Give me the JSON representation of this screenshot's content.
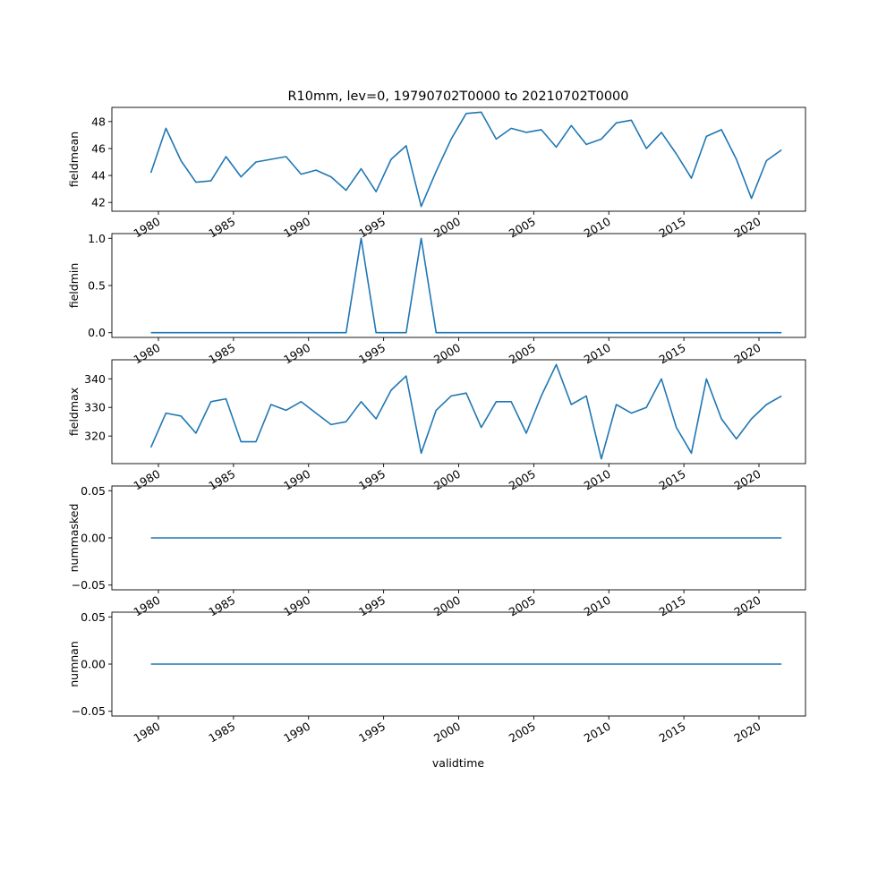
{
  "figure": {
    "title": "R10mm, lev=0, 19790702T0000 to 20210702T0000",
    "xlabel": "validtime",
    "xticks": [
      "1980",
      "1985",
      "1990",
      "1995",
      "2000",
      "2005",
      "2010",
      "2015",
      "2020"
    ],
    "line_color": "#1f77b4"
  },
  "chart_data": [
    {
      "type": "line",
      "ylabel": "fieldmean",
      "x": [
        1979,
        1980,
        1981,
        1982,
        1983,
        1984,
        1985,
        1986,
        1987,
        1988,
        1989,
        1990,
        1991,
        1992,
        1993,
        1994,
        1995,
        1996,
        1997,
        1998,
        1999,
        2000,
        2001,
        2002,
        2003,
        2004,
        2005,
        2006,
        2007,
        2008,
        2009,
        2010,
        2011,
        2012,
        2013,
        2014,
        2015,
        2016,
        2017,
        2018,
        2019,
        2020,
        2021
      ],
      "values": [
        44.2,
        47.5,
        45.1,
        43.5,
        43.6,
        45.4,
        43.9,
        45.0,
        45.2,
        45.4,
        44.1,
        44.4,
        43.9,
        42.9,
        44.5,
        42.8,
        45.2,
        46.2,
        41.7,
        44.3,
        46.7,
        48.6,
        48.7,
        46.7,
        47.5,
        47.2,
        47.4,
        46.1,
        47.7,
        46.3,
        46.7,
        47.9,
        48.1,
        46.0,
        47.2,
        45.6,
        43.8,
        46.9,
        47.4,
        45.2,
        42.3,
        45.1,
        45.9
      ],
      "yticks": [
        42,
        44,
        46,
        48
      ],
      "ylim": [
        41.35,
        49.05
      ]
    },
    {
      "type": "line",
      "ylabel": "fieldmin",
      "x": [
        1979,
        1980,
        1981,
        1982,
        1983,
        1984,
        1985,
        1986,
        1987,
        1988,
        1989,
        1990,
        1991,
        1992,
        1993,
        1994,
        1995,
        1996,
        1997,
        1998,
        1999,
        2000,
        2001,
        2002,
        2003,
        2004,
        2005,
        2006,
        2007,
        2008,
        2009,
        2010,
        2011,
        2012,
        2013,
        2014,
        2015,
        2016,
        2017,
        2018,
        2019,
        2020,
        2021
      ],
      "values": [
        0,
        0,
        0,
        0,
        0,
        0,
        0,
        0,
        0,
        0,
        0,
        0,
        0,
        0,
        1,
        0,
        0,
        0,
        1,
        0,
        0,
        0,
        0,
        0,
        0,
        0,
        0,
        0,
        0,
        0,
        0,
        0,
        0,
        0,
        0,
        0,
        0,
        0,
        0,
        0,
        0,
        0,
        0
      ],
      "yticks": [
        "0.0",
        "0.5",
        "1.0"
      ],
      "ylim": [
        -0.05,
        1.05
      ]
    },
    {
      "type": "line",
      "ylabel": "fieldmax",
      "x": [
        1979,
        1980,
        1981,
        1982,
        1983,
        1984,
        1985,
        1986,
        1987,
        1988,
        1989,
        1990,
        1991,
        1992,
        1993,
        1994,
        1995,
        1996,
        1997,
        1998,
        1999,
        2000,
        2001,
        2002,
        2003,
        2004,
        2005,
        2006,
        2007,
        2008,
        2009,
        2010,
        2011,
        2012,
        2013,
        2014,
        2015,
        2016,
        2017,
        2018,
        2019,
        2020,
        2021
      ],
      "values": [
        316,
        328,
        327,
        321,
        332,
        333,
        318,
        318,
        331,
        329,
        332,
        328,
        324,
        325,
        332,
        326,
        336,
        341,
        314,
        329,
        334,
        335,
        323,
        332,
        332,
        321,
        334,
        345,
        331,
        334,
        312,
        331,
        328,
        330,
        340,
        323,
        314,
        340,
        326,
        319,
        326,
        331,
        334
      ],
      "yticks": [
        320,
        330,
        340
      ],
      "ylim": [
        310.35,
        346.65
      ]
    },
    {
      "type": "line",
      "ylabel": "nummasked",
      "x": [
        1979,
        1980,
        1981,
        1982,
        1983,
        1984,
        1985,
        1986,
        1987,
        1988,
        1989,
        1990,
        1991,
        1992,
        1993,
        1994,
        1995,
        1996,
        1997,
        1998,
        1999,
        2000,
        2001,
        2002,
        2003,
        2004,
        2005,
        2006,
        2007,
        2008,
        2009,
        2010,
        2011,
        2012,
        2013,
        2014,
        2015,
        2016,
        2017,
        2018,
        2019,
        2020,
        2021
      ],
      "values": [
        0,
        0,
        0,
        0,
        0,
        0,
        0,
        0,
        0,
        0,
        0,
        0,
        0,
        0,
        0,
        0,
        0,
        0,
        0,
        0,
        0,
        0,
        0,
        0,
        0,
        0,
        0,
        0,
        0,
        0,
        0,
        0,
        0,
        0,
        0,
        0,
        0,
        0,
        0,
        0,
        0,
        0,
        0
      ],
      "yticks": [
        "−0.05",
        "0.00",
        "0.05"
      ],
      "ylim": [
        -0.055,
        0.055
      ]
    },
    {
      "type": "line",
      "ylabel": "numnan",
      "x": [
        1979,
        1980,
        1981,
        1982,
        1983,
        1984,
        1985,
        1986,
        1987,
        1988,
        1989,
        1990,
        1991,
        1992,
        1993,
        1994,
        1995,
        1996,
        1997,
        1998,
        1999,
        2000,
        2001,
        2002,
        2003,
        2004,
        2005,
        2006,
        2007,
        2008,
        2009,
        2010,
        2011,
        2012,
        2013,
        2014,
        2015,
        2016,
        2017,
        2018,
        2019,
        2020,
        2021
      ],
      "values": [
        0,
        0,
        0,
        0,
        0,
        0,
        0,
        0,
        0,
        0,
        0,
        0,
        0,
        0,
        0,
        0,
        0,
        0,
        0,
        0,
        0,
        0,
        0,
        0,
        0,
        0,
        0,
        0,
        0,
        0,
        0,
        0,
        0,
        0,
        0,
        0,
        0,
        0,
        0,
        0,
        0,
        0,
        0
      ],
      "yticks": [
        "−0.05",
        "0.00",
        "0.05"
      ],
      "ylim": [
        -0.055,
        0.055
      ]
    }
  ]
}
